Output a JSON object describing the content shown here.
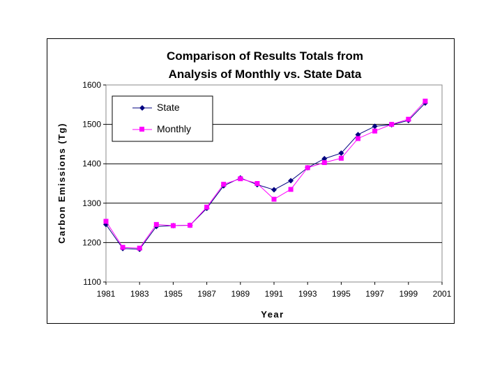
{
  "chart_data": {
    "type": "line",
    "title": [
      "Comparison of Results Totals from",
      "Analysis of Monthly vs. State Data"
    ],
    "xlabel": "Year",
    "ylabel": "Carbon Emissions (Tg)",
    "xlim": [
      1981,
      2001
    ],
    "ylim": [
      1100,
      1600
    ],
    "x_ticks": [
      "1981",
      "1983",
      "1985",
      "1987",
      "1989",
      "1991",
      "1993",
      "1995",
      "1997",
      "1999",
      "2001"
    ],
    "y_ticks": [
      "1100",
      "1200",
      "1300",
      "1400",
      "1500",
      "1600"
    ],
    "grid": "horizontal",
    "legend_position": "top-left",
    "x": [
      1981,
      1982,
      1983,
      1984,
      1985,
      1986,
      1987,
      1988,
      1989,
      1990,
      1991,
      1992,
      1993,
      1994,
      1995,
      1996,
      1997,
      1998,
      1999,
      2000
    ],
    "series": [
      {
        "name": "State",
        "color": "#000080",
        "marker": "diamond",
        "values": [
          1246,
          1185,
          1183,
          1241,
          1243,
          1244,
          1287,
          1344,
          1364,
          1347,
          1334,
          1357,
          1390,
          1413,
          1427,
          1474,
          1495,
          1499,
          1510,
          1554
        ]
      },
      {
        "name": "Monthly",
        "color": "#ff00ff",
        "marker": "square",
        "values": [
          1254,
          1188,
          1186,
          1246,
          1243,
          1244,
          1290,
          1348,
          1362,
          1350,
          1310,
          1335,
          1390,
          1403,
          1414,
          1464,
          1483,
          1500,
          1513,
          1559
        ]
      }
    ]
  }
}
